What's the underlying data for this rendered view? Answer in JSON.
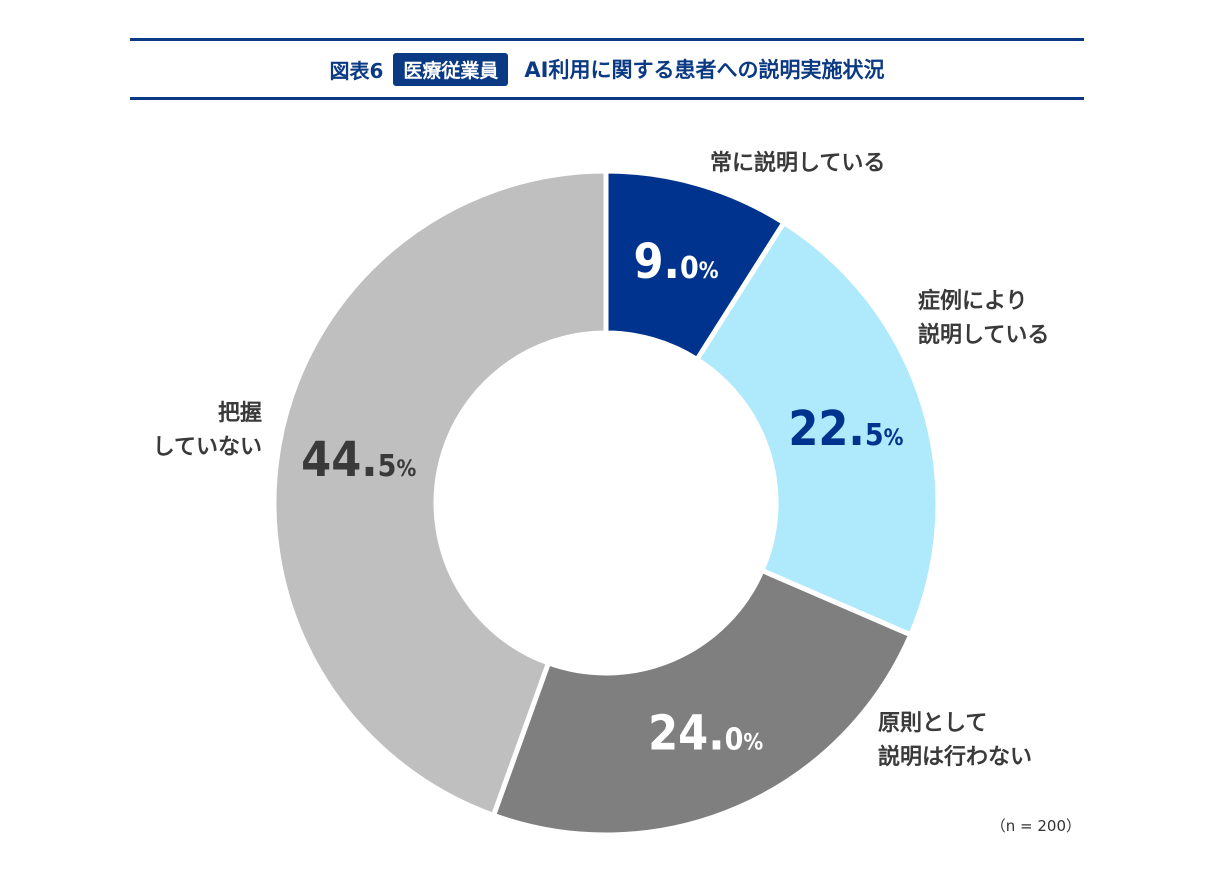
{
  "title": {
    "figure_label": "図表6",
    "tag": "医療従業員",
    "text": "AI利用に関する患者への説明実施状況"
  },
  "note": "（n = 200）",
  "chart_data": {
    "type": "pie",
    "donut": true,
    "unit": "%",
    "slices": [
      {
        "label_lines": [
          "常に説明している"
        ],
        "value": 9.0,
        "display": "9.0",
        "color": "#00338d",
        "text_color": "#ffffff"
      },
      {
        "label_lines": [
          "症例により",
          "説明している"
        ],
        "value": 22.5,
        "display": "22.5",
        "color": "#aee9fc",
        "text_color": "#00338d"
      },
      {
        "label_lines": [
          "原則として",
          "説明は行わない"
        ],
        "value": 24.0,
        "display": "24.0",
        "color": "#7f7f7f",
        "text_color": "#ffffff"
      },
      {
        "label_lines": [
          "把握",
          "していない"
        ],
        "value": 44.5,
        "display": "44.5",
        "color": "#bfbfbf",
        "text_color": "#3a3a3a"
      }
    ]
  }
}
